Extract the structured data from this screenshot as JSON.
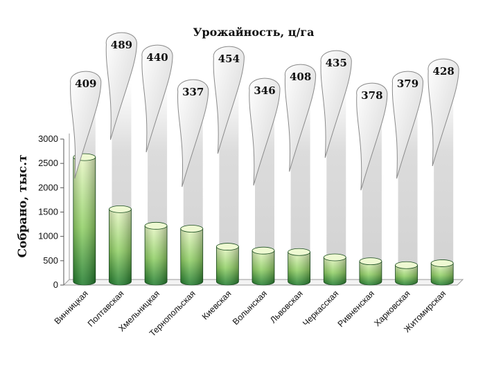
{
  "chart_data": {
    "type": "bar",
    "title": "Урожайность, ц/га",
    "xlabel": "",
    "ylabel": "Собрано, тыс.т",
    "ylim": [
      0,
      3000
    ],
    "yticks": [
      "0",
      "500",
      "1000",
      "1500",
      "2000",
      "2500",
      "3000"
    ],
    "categories": [
      "Винницкая",
      "Полтавская",
      "Хмельницкая",
      "Тернопольская",
      "Киевская",
      "Волынская",
      "Львовская",
      "Черкасская",
      "Ривненская",
      "Харковская",
      "Житомирская"
    ],
    "series": [
      {
        "values": [
          2600,
          1530,
          1190,
          1130,
          760,
          680,
          650,
          540,
          460,
          380,
          420
        ]
      }
    ],
    "yield_labels": [
      "409",
      "489",
      "440",
      "337",
      "454",
      "346",
      "408",
      "435",
      "378",
      "379",
      "428"
    ],
    "yield_values": [
      409,
      489,
      440,
      337,
      454,
      346,
      408,
      435,
      378,
      379,
      428
    ],
    "grid": false,
    "legend": "none",
    "colors": {
      "bar_top": "#e6f5c0",
      "bar_bottom": "#1d7a2a",
      "root": "#e8e8e8"
    }
  }
}
